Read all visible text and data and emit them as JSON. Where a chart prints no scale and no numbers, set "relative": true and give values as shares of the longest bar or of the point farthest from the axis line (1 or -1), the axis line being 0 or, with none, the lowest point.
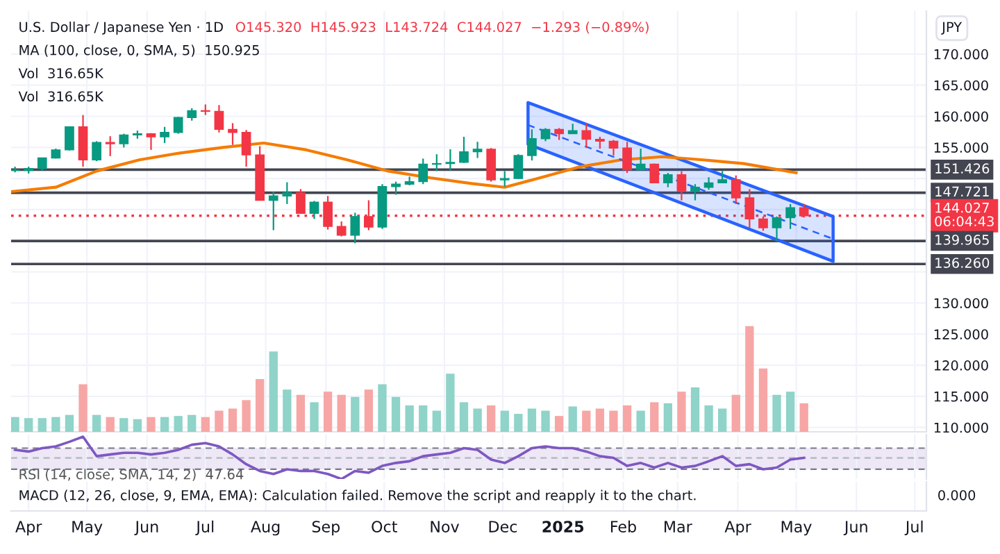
{
  "chart_data": [
    {
      "type": "candlestick",
      "title": "U.S. Dollar / Japanese Yen · 1D",
      "subtitle": "O145.320  H145.923  L143.724  C144.027  −1.293 (−0.89%)",
      "ylabel": "JPY",
      "annotations": [
        "MA (100, close, 0, SMA, 5)  150.925",
        "Vol  316.65K",
        "Vol  316.65K"
      ],
      "x": [
        "2024-03-25",
        "2024-04-01",
        "2024-04-08",
        "2024-04-15",
        "2024-04-22",
        "2024-04-29",
        "2024-05-06",
        "2024-05-13",
        "2024-05-20",
        "2024-05-27",
        "2024-06-03",
        "2024-06-10",
        "2024-06-17",
        "2024-06-24",
        "2024-07-01",
        "2024-07-08",
        "2024-07-15",
        "2024-07-22",
        "2024-07-29",
        "2024-08-05",
        "2024-08-12",
        "2024-08-19",
        "2024-08-26",
        "2024-09-02",
        "2024-09-09",
        "2024-09-16",
        "2024-09-23",
        "2024-09-30",
        "2024-10-07",
        "2024-10-14",
        "2024-10-21",
        "2024-10-28",
        "2024-11-04",
        "2024-11-11",
        "2024-11-18",
        "2024-11-25",
        "2024-12-02",
        "2024-12-09",
        "2024-12-16",
        "2024-12-23",
        "2024-12-30",
        "2025-01-06",
        "2025-01-13",
        "2025-01-20",
        "2025-01-27",
        "2025-02-03",
        "2025-02-10",
        "2025-02-17",
        "2025-02-24",
        "2025-03-03",
        "2025-03-10",
        "2025-03-17",
        "2025-03-24",
        "2025-03-31",
        "2025-04-07",
        "2025-04-14",
        "2025-04-21",
        "2025-04-28",
        "2025-05-05"
      ],
      "ohlc": [
        [
          151.3,
          151.9,
          151.0,
          151.3
        ],
        [
          151.3,
          151.9,
          150.8,
          151.6
        ],
        [
          151.6,
          153.3,
          151.3,
          153.3
        ],
        [
          153.3,
          154.8,
          153.2,
          154.6
        ],
        [
          154.6,
          158.4,
          154.5,
          158.3
        ],
        [
          158.3,
          160.2,
          151.9,
          153.0
        ],
        [
          153.0,
          156.0,
          152.8,
          155.8
        ],
        [
          155.8,
          156.8,
          153.6,
          155.6
        ],
        [
          155.6,
          157.2,
          155.0,
          157.0
        ],
        [
          157.0,
          157.7,
          156.4,
          157.2
        ],
        [
          157.2,
          157.3,
          154.6,
          156.7
        ],
        [
          156.7,
          158.3,
          155.7,
          157.4
        ],
        [
          157.4,
          159.9,
          157.2,
          159.8
        ],
        [
          159.8,
          161.3,
          159.3,
          160.9
        ],
        [
          160.9,
          161.9,
          160.2,
          160.8
        ],
        [
          160.8,
          161.8,
          157.4,
          157.9
        ],
        [
          157.9,
          158.9,
          155.4,
          157.4
        ],
        [
          157.4,
          157.8,
          151.9,
          153.8
        ],
        [
          153.8,
          155.2,
          146.5,
          146.5
        ],
        [
          146.5,
          147.9,
          141.7,
          147.2
        ],
        [
          147.2,
          149.4,
          145.9,
          147.7
        ],
        [
          147.7,
          148.3,
          144.4,
          144.4
        ],
        [
          144.4,
          146.4,
          143.5,
          146.2
        ],
        [
          146.2,
          147.2,
          141.8,
          142.3
        ],
        [
          142.3,
          143.1,
          140.7,
          140.9
        ],
        [
          140.9,
          144.5,
          139.6,
          143.9
        ],
        [
          143.9,
          146.5,
          141.7,
          142.2
        ],
        [
          142.2,
          149.1,
          141.9,
          148.7
        ],
        [
          148.7,
          149.5,
          147.4,
          149.1
        ],
        [
          149.1,
          150.3,
          148.9,
          149.5
        ],
        [
          149.5,
          153.2,
          149.1,
          152.3
        ],
        [
          152.3,
          153.9,
          151.2,
          152.4
        ],
        [
          152.4,
          154.7,
          151.3,
          152.6
        ],
        [
          152.6,
          156.7,
          152.5,
          154.3
        ],
        [
          154.3,
          155.9,
          153.3,
          154.7
        ],
        [
          154.7,
          154.9,
          149.5,
          149.8
        ],
        [
          149.8,
          151.2,
          148.7,
          150.0
        ],
        [
          150.0,
          153.9,
          149.9,
          153.7
        ],
        [
          153.7,
          157.9,
          152.9,
          156.4
        ],
        [
          156.4,
          158.1,
          156.0,
          157.9
        ],
        [
          157.9,
          158.1,
          156.2,
          157.2
        ],
        [
          157.2,
          158.8,
          157.2,
          157.7
        ],
        [
          157.7,
          158.9,
          154.9,
          156.3
        ],
        [
          156.3,
          156.7,
          154.8,
          156.0
        ],
        [
          156.0,
          156.2,
          153.7,
          154.9
        ],
        [
          154.9,
          155.9,
          150.9,
          151.4
        ],
        [
          151.4,
          154.8,
          151.3,
          152.3
        ],
        [
          152.3,
          152.4,
          149.3,
          149.3
        ],
        [
          149.3,
          150.9,
          148.6,
          150.6
        ],
        [
          150.6,
          151.2,
          146.5,
          148.0
        ],
        [
          148.0,
          149.1,
          146.5,
          148.6
        ],
        [
          148.6,
          150.2,
          148.2,
          149.3
        ],
        [
          149.3,
          151.2,
          149.3,
          149.8
        ],
        [
          149.8,
          150.5,
          145.9,
          146.9
        ],
        [
          146.9,
          148.3,
          142.1,
          143.5
        ],
        [
          143.5,
          143.9,
          141.6,
          142.1
        ],
        [
          142.1,
          143.9,
          139.9,
          143.7
        ],
        [
          143.7,
          145.9,
          141.9,
          145.3
        ],
        [
          145.32,
          145.923,
          143.724,
          144.027
        ]
      ],
      "colors": [
        "#089981",
        "#089981",
        "#089981",
        "#089981",
        "#089981",
        "#f23645",
        "#089981",
        "#f23645",
        "#089981",
        "#089981",
        "#f23645",
        "#089981",
        "#089981",
        "#089981",
        "#f23645",
        "#f23645",
        "#f23645",
        "#f23645",
        "#f23645",
        "#089981",
        "#089981",
        "#f23645",
        "#089981",
        "#f23645",
        "#f23645",
        "#089981",
        "#f23645",
        "#089981",
        "#089981",
        "#089981",
        "#089981",
        "#089981",
        "#089981",
        "#089981",
        "#089981",
        "#f23645",
        "#089981",
        "#089981",
        "#089981",
        "#089981",
        "#f23645",
        "#089981",
        "#f23645",
        "#f23645",
        "#f23645",
        "#f23645",
        "#089981",
        "#f23645",
        "#089981",
        "#f23645",
        "#089981",
        "#089981",
        "#089981",
        "#f23645",
        "#f23645",
        "#f23645",
        "#089981",
        "#089981",
        "#f23645"
      ],
      "series": [
        {
          "type": "line",
          "color": "#f57c00",
          "x": [
            "2024-03-23",
            "2024-04-15",
            "2024-05-06",
            "2024-05-28",
            "2024-06-18",
            "2024-07-10",
            "2024-07-31",
            "2024-08-22",
            "2024-09-12",
            "2024-10-03",
            "2024-10-25",
            "2024-11-15",
            "2024-12-02",
            "2024-12-20",
            "2025-01-10",
            "2025-01-31",
            "2025-02-21",
            "2025-03-14",
            "2025-04-04",
            "2025-05-01"
          ],
          "values": [
            147.9,
            148.6,
            151.2,
            153.0,
            154.1,
            155.0,
            155.7,
            154.6,
            153.0,
            151.2,
            150.1,
            149.2,
            148.6,
            150.1,
            151.9,
            153.0,
            153.5,
            153.0,
            152.4,
            150.925
          ]
        },
        {
          "type": "line",
          "color": "#2962ff",
          "line_style": "dashed",
          "x": [
            "2024-12-14",
            "2025-05-20"
          ],
          "values": [
            158.6,
            140.3
          ],
          "lower": [
            155.5,
            136.7
          ],
          "upper": [
            162.2,
            143.9
          ]
        }
      ],
      "ref_lines": [
        {
          "axis": "y",
          "value": 151.426,
          "label": "151.426",
          "color": "#434651"
        },
        {
          "axis": "y",
          "value": 147.721,
          "label": "147.721",
          "color": "#434651"
        },
        {
          "axis": "y",
          "value": 144.027,
          "label": "144.027\n06:04:43",
          "color": "#f23645",
          "line_style": "dotted"
        },
        {
          "axis": "y",
          "value": 139.965,
          "label": "139.965",
          "color": "#434651"
        },
        {
          "axis": "y",
          "value": 136.26,
          "label": "136.260",
          "color": "#434651"
        }
      ],
      "xlim": [
        "2024-03-23",
        "2025-07-07"
      ],
      "ylim": [
        109.3,
        176.9
      ],
      "yticks": [
        {
          "value": 110,
          "label": "110.000"
        },
        {
          "value": 115,
          "label": "115.000"
        },
        {
          "value": 120,
          "label": "120.000"
        },
        {
          "value": 125,
          "label": "125.000"
        },
        {
          "value": 130,
          "label": "130.000"
        },
        {
          "value": 135,
          "label": null
        },
        {
          "value": 140,
          "label": null
        },
        {
          "value": 145,
          "label": null
        },
        {
          "value": 150,
          "label": null
        },
        {
          "value": 155,
          "label": "155.000"
        },
        {
          "value": 160,
          "label": "160.000"
        },
        {
          "value": 165,
          "label": "165.000"
        },
        {
          "value": 170,
          "label": "170.000"
        }
      ],
      "xticks": [
        {
          "value": "2024-04-01",
          "label": "Apr"
        },
        {
          "value": "2024-05-01",
          "label": "May"
        },
        {
          "value": "2024-06-01",
          "label": "Jun"
        },
        {
          "value": "2024-07-01",
          "label": "Jul"
        },
        {
          "value": "2024-08-01",
          "label": "Aug"
        },
        {
          "value": "2024-09-01",
          "label": "Sep"
        },
        {
          "value": "2024-10-01",
          "label": "Oct"
        },
        {
          "value": "2024-11-01",
          "label": "Nov"
        },
        {
          "value": "2024-12-01",
          "label": "Dec"
        },
        {
          "value": "2025-01-01",
          "label": "2025"
        },
        {
          "value": "2025-02-01",
          "label": "Feb"
        },
        {
          "value": "2025-03-01",
          "label": "Mar"
        },
        {
          "value": "2025-04-01",
          "label": "Apr"
        },
        {
          "value": "2025-05-01",
          "label": "May"
        },
        {
          "value": "2025-06-01",
          "label": "Jun"
        },
        {
          "value": "2025-07-01",
          "label": "Jul"
        }
      ],
      "grid": true
    },
    {
      "type": "bar",
      "relative": true,
      "tick_labels": false,
      "xlim": [
        "2024-03-23",
        "2025-07-07"
      ],
      "x": [
        "2024-03-25",
        "2024-04-01",
        "2024-04-08",
        "2024-04-15",
        "2024-04-22",
        "2024-04-29",
        "2024-05-06",
        "2024-05-13",
        "2024-05-20",
        "2024-05-27",
        "2024-06-03",
        "2024-06-10",
        "2024-06-17",
        "2024-06-24",
        "2024-07-01",
        "2024-07-08",
        "2024-07-15",
        "2024-07-22",
        "2024-07-29",
        "2024-08-05",
        "2024-08-12",
        "2024-08-19",
        "2024-08-26",
        "2024-09-02",
        "2024-09-09",
        "2024-09-16",
        "2024-09-23",
        "2024-09-30",
        "2024-10-07",
        "2024-10-14",
        "2024-10-21",
        "2024-10-28",
        "2024-11-04",
        "2024-11-11",
        "2024-11-18",
        "2024-11-25",
        "2024-12-02",
        "2024-12-09",
        "2024-12-16",
        "2024-12-23",
        "2024-12-30",
        "2025-01-06",
        "2025-01-13",
        "2025-01-20",
        "2025-01-27",
        "2025-02-03",
        "2025-02-10",
        "2025-02-17",
        "2025-02-24",
        "2025-03-03",
        "2025-03-10",
        "2025-03-17",
        "2025-03-24",
        "2025-03-31",
        "2025-04-07",
        "2025-04-14",
        "2025-04-21",
        "2025-04-28",
        "2025-05-05"
      ],
      "values": [
        0.14,
        0.13,
        0.13,
        0.14,
        0.16,
        0.45,
        0.16,
        0.14,
        0.13,
        0.12,
        0.14,
        0.14,
        0.15,
        0.16,
        0.14,
        0.2,
        0.22,
        0.3,
        0.5,
        0.76,
        0.4,
        0.35,
        0.28,
        0.38,
        0.35,
        0.33,
        0.4,
        0.45,
        0.33,
        0.25,
        0.25,
        0.2,
        0.55,
        0.28,
        0.22,
        0.25,
        0.2,
        0.17,
        0.22,
        0.2,
        0.15,
        0.24,
        0.2,
        0.22,
        0.2,
        0.25,
        0.2,
        0.28,
        0.27,
        0.38,
        0.42,
        0.25,
        0.22,
        0.35,
        1.0,
        0.6,
        0.35,
        0.38,
        0.27
      ],
      "colors": [
        "#8fd3c9",
        "#8fd3c9",
        "#8fd3c9",
        "#8fd3c9",
        "#8fd3c9",
        "#f7a6a6",
        "#8fd3c9",
        "#f7a6a6",
        "#8fd3c9",
        "#8fd3c9",
        "#f7a6a6",
        "#8fd3c9",
        "#8fd3c9",
        "#8fd3c9",
        "#f7a6a6",
        "#f7a6a6",
        "#f7a6a6",
        "#f7a6a6",
        "#f7a6a6",
        "#8fd3c9",
        "#8fd3c9",
        "#f7a6a6",
        "#8fd3c9",
        "#f7a6a6",
        "#f7a6a6",
        "#8fd3c9",
        "#f7a6a6",
        "#8fd3c9",
        "#8fd3c9",
        "#8fd3c9",
        "#8fd3c9",
        "#8fd3c9",
        "#8fd3c9",
        "#8fd3c9",
        "#8fd3c9",
        "#f7a6a6",
        "#8fd3c9",
        "#8fd3c9",
        "#8fd3c9",
        "#8fd3c9",
        "#f7a6a6",
        "#8fd3c9",
        "#f7a6a6",
        "#f7a6a6",
        "#f7a6a6",
        "#f7a6a6",
        "#8fd3c9",
        "#f7a6a6",
        "#8fd3c9",
        "#f7a6a6",
        "#8fd3c9",
        "#8fd3c9",
        "#8fd3c9",
        "#f7a6a6",
        "#f7a6a6",
        "#f7a6a6",
        "#8fd3c9",
        "#8fd3c9",
        "#f7a6a6"
      ]
    },
    {
      "type": "line",
      "relative": true,
      "grid": "x",
      "tick_labels": false,
      "title": "RSI (14, close, SMA, 14, 2)  47.64",
      "xlim": [
        "2024-03-23",
        "2025-07-07"
      ],
      "xticks": [
        {
          "value": "2024-04-01",
          "label": null
        },
        {
          "value": "2024-05-01",
          "label": null
        },
        {
          "value": "2024-06-01",
          "label": null
        },
        {
          "value": "2024-07-01",
          "label": null
        },
        {
          "value": "2024-08-01",
          "label": null
        },
        {
          "value": "2024-09-01",
          "label": null
        },
        {
          "value": "2024-10-01",
          "label": null
        },
        {
          "value": "2024-11-01",
          "label": null
        },
        {
          "value": "2024-12-01",
          "label": null
        },
        {
          "value": "2025-01-01",
          "label": null
        },
        {
          "value": "2025-02-01",
          "label": null
        },
        {
          "value": "2025-03-01",
          "label": null
        },
        {
          "value": "2025-04-01",
          "label": null
        },
        {
          "value": "2025-05-01",
          "label": null
        },
        {
          "value": "2025-06-01",
          "label": null
        },
        {
          "value": "2025-07-01",
          "label": null
        }
      ],
      "x": [
        "2024-03-25",
        "2024-04-01",
        "2024-04-08",
        "2024-04-15",
        "2024-04-22",
        "2024-04-29",
        "2024-05-06",
        "2024-05-13",
        "2024-05-20",
        "2024-05-27",
        "2024-06-03",
        "2024-06-10",
        "2024-06-17",
        "2024-06-24",
        "2024-07-01",
        "2024-07-08",
        "2024-07-15",
        "2024-07-22",
        "2024-07-29",
        "2024-08-05",
        "2024-08-12",
        "2024-08-19",
        "2024-08-26",
        "2024-09-02",
        "2024-09-09",
        "2024-09-16",
        "2024-09-23",
        "2024-09-30",
        "2024-10-07",
        "2024-10-14",
        "2024-10-21",
        "2024-10-28",
        "2024-11-04",
        "2024-11-11",
        "2024-11-18",
        "2024-11-25",
        "2024-12-02",
        "2024-12-09",
        "2024-12-16",
        "2024-12-23",
        "2024-12-30",
        "2025-01-06",
        "2025-01-13",
        "2025-01-20",
        "2025-01-27",
        "2025-02-03",
        "2025-02-10",
        "2025-02-17",
        "2025-02-24",
        "2025-03-03",
        "2025-03-10",
        "2025-03-17",
        "2025-03-24",
        "2025-03-31",
        "2025-04-07",
        "2025-04-14",
        "2025-04-21",
        "2025-04-28",
        "2025-05-05"
      ],
      "color": "#7e57c2",
      "values": [
        0.69,
        0.65,
        0.73,
        0.77,
        0.88,
        1.0,
        0.54,
        0.58,
        0.62,
        0.62,
        0.58,
        0.62,
        0.69,
        0.81,
        0.85,
        0.77,
        0.58,
        0.35,
        0.19,
        0.12,
        0.23,
        0.19,
        0.19,
        0.12,
        0.0,
        0.19,
        0.15,
        0.31,
        0.38,
        0.42,
        0.54,
        0.58,
        0.62,
        0.73,
        0.69,
        0.46,
        0.38,
        0.54,
        0.73,
        0.77,
        0.73,
        0.73,
        0.65,
        0.54,
        0.5,
        0.31,
        0.38,
        0.27,
        0.38,
        0.27,
        0.31,
        0.42,
        0.54,
        0.31,
        0.35,
        0.23,
        0.27,
        0.46,
        0.5
      ],
      "bands": [
        {
          "axis": "y",
          "from": 0.23,
          "to": 0.73,
          "color": "#ede7f6"
        }
      ],
      "ref_lines": [
        {
          "axis": "y",
          "value": 0.73,
          "color": "#787b86",
          "line_style": "dashed"
        },
        {
          "axis": "y",
          "value": 0.5,
          "color": "#b2b5be",
          "line_style": "dashed"
        },
        {
          "axis": "y",
          "value": 0.23,
          "color": "#787b86",
          "line_style": "dashed"
        }
      ]
    },
    {
      "type": "other",
      "annotations": [
        "MACD (12, 26, close, 9, EMA, EMA): Calculation failed. Remove the script and reapply it to the chart.",
        "0.000"
      ]
    }
  ]
}
